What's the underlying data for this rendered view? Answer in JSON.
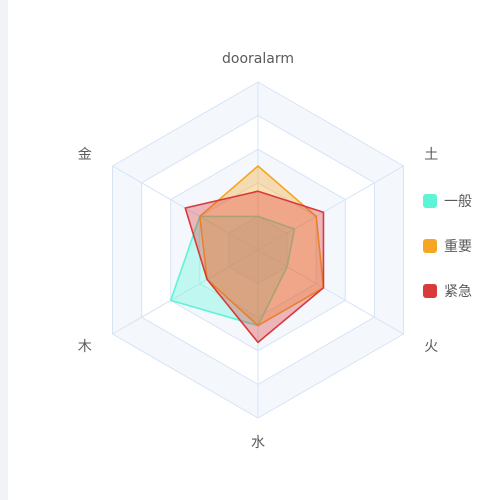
{
  "chart_data": {
    "type": "radar",
    "indicators": [
      "dooralarm",
      "土",
      "火",
      "水",
      "木",
      "金"
    ],
    "max": 100,
    "split_number": 5,
    "series": [
      {
        "name": "一般",
        "color": "#5ef5d6",
        "values": [
          20,
          25,
          20,
          45,
          60,
          40
        ]
      },
      {
        "name": "重要",
        "color": "#f5a623",
        "values": [
          50,
          40,
          45,
          45,
          35,
          40
        ]
      },
      {
        "name": "紧急",
        "color": "#d93a3a",
        "values": [
          35,
          45,
          45,
          55,
          35,
          50
        ]
      }
    ],
    "legend_position": "right",
    "split_area_colors": [
      "#f4f8fd",
      "#ffffff"
    ],
    "split_line_color": "#d6e4f5"
  }
}
